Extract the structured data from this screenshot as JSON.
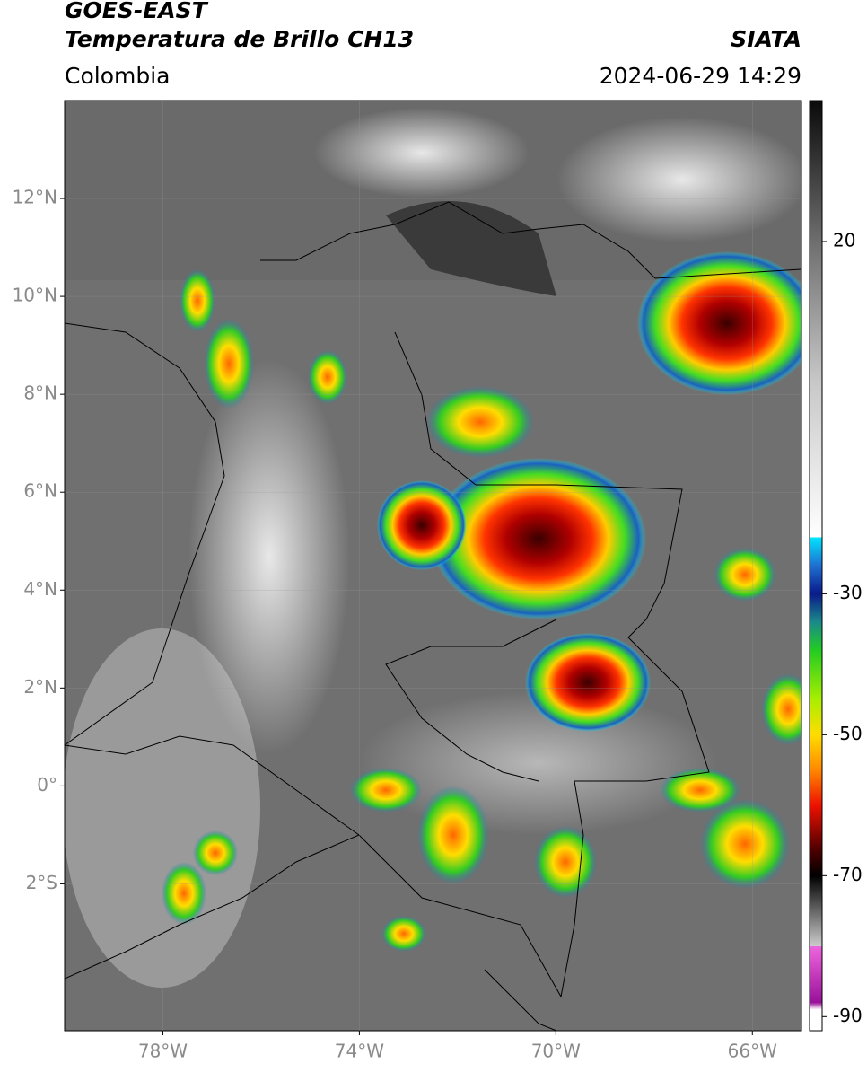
{
  "chart_data": {
    "type": "map",
    "title": "GOES-EAST",
    "subtitle": "Temperatura de Brillo CH13",
    "source": "SIATA",
    "region": "Colombia",
    "timestamp": "2024-06-29 14:29",
    "xlim": [
      -80,
      -65
    ],
    "ylim": [
      -5,
      14
    ],
    "xticks": [
      {
        "value": -78,
        "label": "78°W"
      },
      {
        "value": -74,
        "label": "74°W"
      },
      {
        "value": -70,
        "label": "70°W"
      },
      {
        "value": -66,
        "label": "66°W"
      }
    ],
    "yticks": [
      {
        "value": 12,
        "label": "12°N"
      },
      {
        "value": 10,
        "label": "10°N"
      },
      {
        "value": 8,
        "label": "8°N"
      },
      {
        "value": 6,
        "label": "6°N"
      },
      {
        "value": 4,
        "label": "4°N"
      },
      {
        "value": 2,
        "label": "2°N"
      },
      {
        "value": 0,
        "label": "0°"
      },
      {
        "value": -2,
        "label": "2°S"
      }
    ],
    "grid": true,
    "colorbar": {
      "lim": [
        -92,
        40
      ],
      "ticks": [
        20,
        -30,
        -50,
        -70,
        -90
      ],
      "colormap": [
        {
          "value": 40,
          "color": "#0a0a0a"
        },
        {
          "value": 20,
          "color": "#6e6e6e"
        },
        {
          "value": 0,
          "color": "#c8c8c8"
        },
        {
          "value": -22,
          "color": "#ffffff"
        },
        {
          "value": -22,
          "color": "#00e5ff"
        },
        {
          "value": -26,
          "color": "#1f6fd0"
        },
        {
          "value": -30,
          "color": "#0a1a8a"
        },
        {
          "value": -34,
          "color": "#1a8a8a"
        },
        {
          "value": -38,
          "color": "#22cc22"
        },
        {
          "value": -45,
          "color": "#aaee00"
        },
        {
          "value": -50,
          "color": "#ffdd00"
        },
        {
          "value": -55,
          "color": "#ff8800"
        },
        {
          "value": -60,
          "color": "#ee1100"
        },
        {
          "value": -66,
          "color": "#550000"
        },
        {
          "value": -70,
          "color": "#000000"
        },
        {
          "value": -80,
          "color": "#cccccc"
        },
        {
          "value": -80,
          "color": "#ee66dd"
        },
        {
          "value": -88,
          "color": "#991199"
        },
        {
          "value": -89,
          "color": "#ffffff"
        },
        {
          "value": -92,
          "color": "#ffffff"
        }
      ]
    }
  }
}
